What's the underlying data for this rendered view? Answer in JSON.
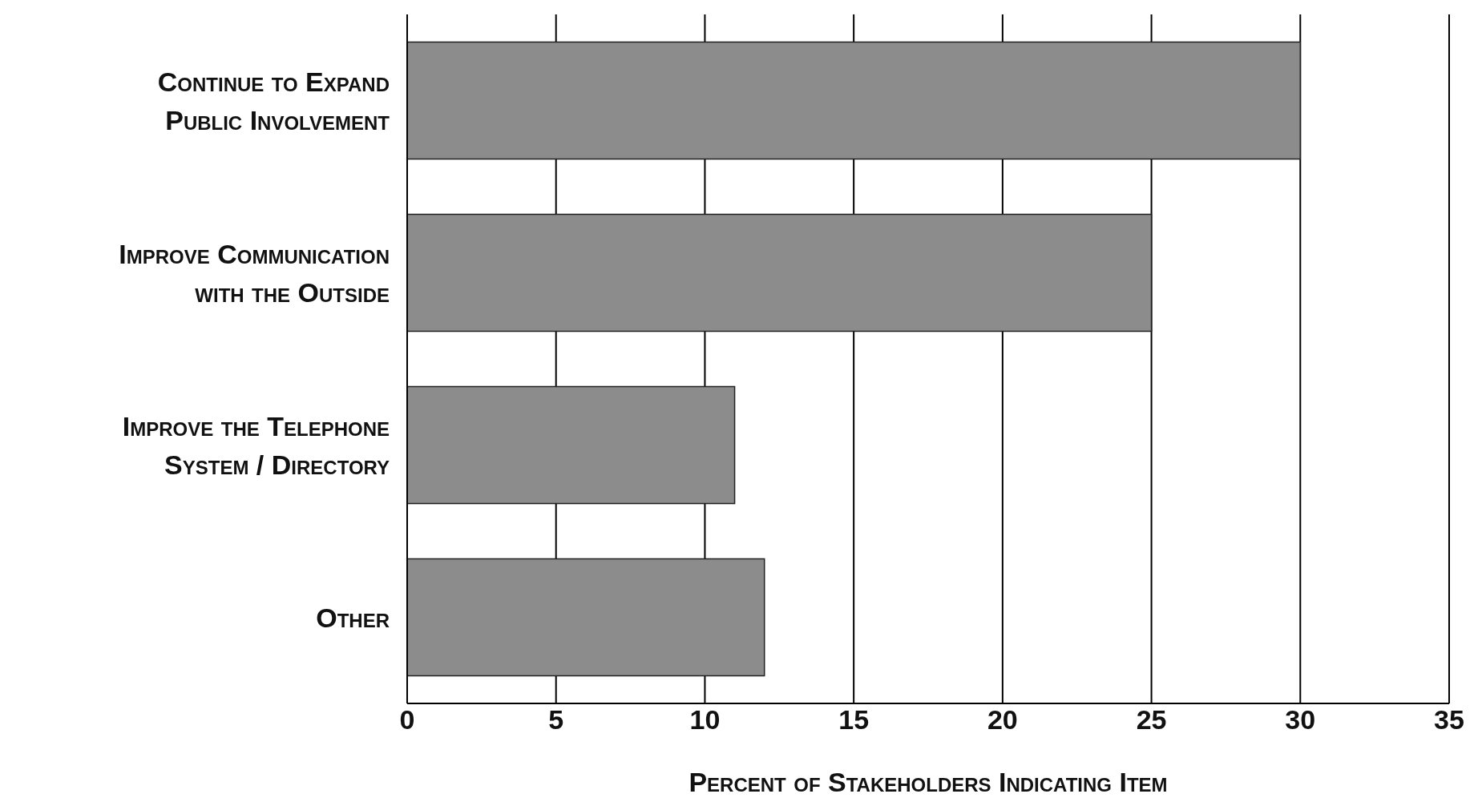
{
  "chart_data": {
    "type": "bar",
    "orientation": "horizontal",
    "categories": [
      "Continue to Expand Public Involvement",
      "Improve Communication with the Outside",
      "Improve the Telephone System / Directory",
      "Other"
    ],
    "values": [
      30,
      25,
      11,
      12
    ],
    "color": "#8c8c8c",
    "xlabel": "Percent of Stakeholders Indicating Item",
    "xlim": [
      0,
      35
    ],
    "xticks": [
      0,
      5,
      10,
      15,
      20,
      25,
      30,
      35
    ],
    "grid": "x"
  }
}
